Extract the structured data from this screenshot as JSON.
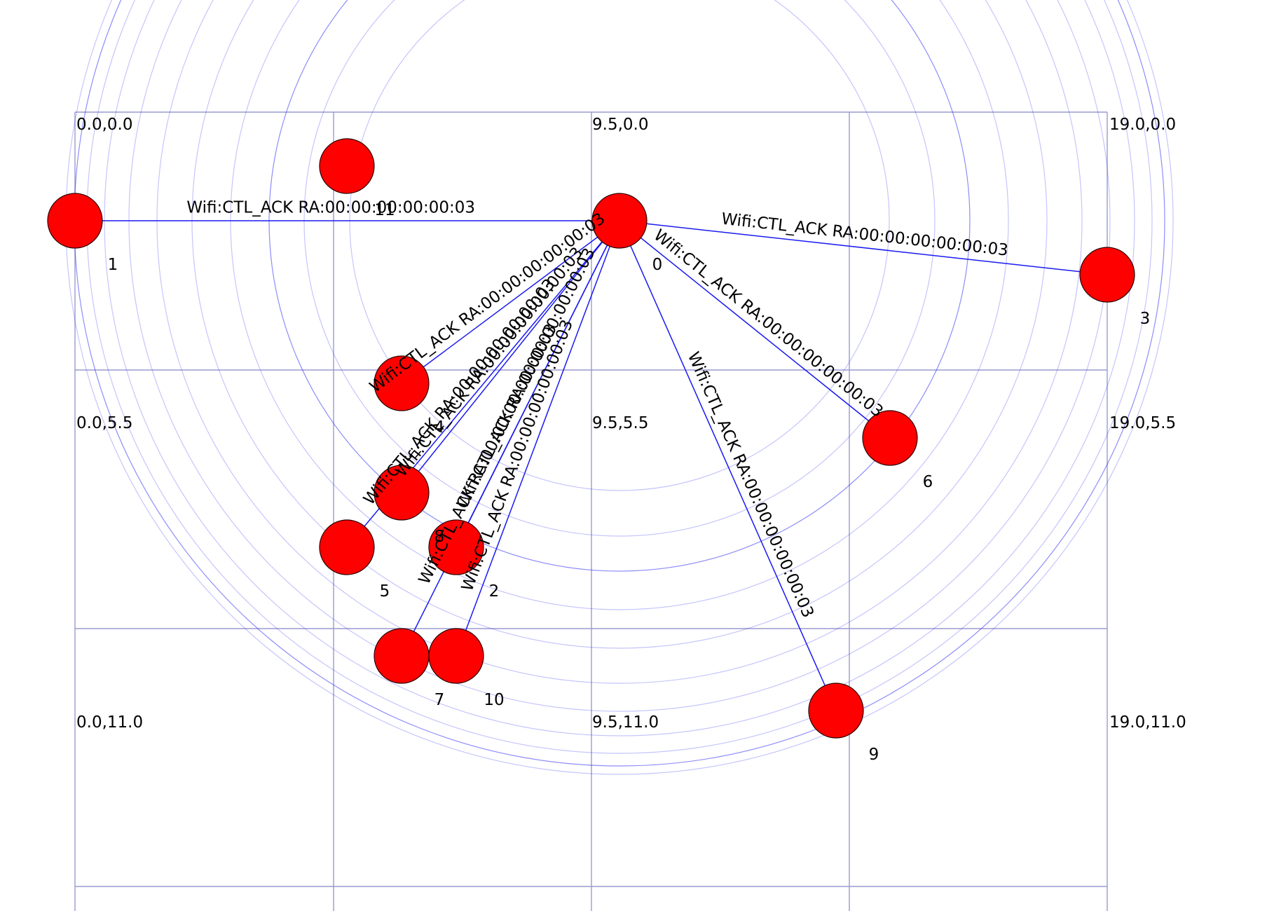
{
  "grid": {
    "coord_labels": [
      "0.0,0.0",
      "9.5,0.0",
      "19.0,0.0",
      "0.0,5.5",
      "9.5,5.5",
      "19.0,5.5",
      "0.0,11.0",
      "9.5,11.0",
      "19.0,11.0"
    ]
  },
  "nodes": [
    {
      "id": "0",
      "label": "0"
    },
    {
      "id": "1",
      "label": "1"
    },
    {
      "id": "2",
      "label": "2"
    },
    {
      "id": "3",
      "label": "3"
    },
    {
      "id": "4",
      "label": "4"
    },
    {
      "id": "5",
      "label": "5"
    },
    {
      "id": "6",
      "label": "6"
    },
    {
      "id": "7",
      "label": "7"
    },
    {
      "id": "8",
      "label": "8"
    },
    {
      "id": "9",
      "label": "9"
    },
    {
      "id": "10",
      "label": "10"
    },
    {
      "id": "11",
      "label": "11"
    }
  ],
  "transmissions": [
    {
      "from": "0",
      "to": "1",
      "label": "Wifi:CTL_ACK RA:00:00:00:00:00:03"
    },
    {
      "from": "0",
      "to": "3",
      "label": "Wifi:CTL_ACK RA:00:00:00:00:00:03"
    },
    {
      "from": "0",
      "to": "6",
      "label": "Wifi:CTL_ACK RA:00:00:00:00:00:03"
    },
    {
      "from": "0",
      "to": "9",
      "label": "Wifi:CTL_ACK RA:00:00:00:00:00:03"
    },
    {
      "from": "0",
      "to": "4",
      "label": "Wifi:CTL_ACK RA:00:00:00:00:00:03"
    },
    {
      "from": "0",
      "to": "8",
      "label": "Wifi:CTL_ACK RA:00:00:00:00:00:03"
    },
    {
      "from": "0",
      "to": "5",
      "label": "Wifi:CTL_ACK RA:00:00:00:00:00:03"
    },
    {
      "from": "0",
      "to": "2",
      "label": "Wifi:CTL_ACK RA:00:00:00:00:00:03"
    },
    {
      "from": "0",
      "to": "7",
      "label": "Wifi:CTL_ACK RA:00:00:00:00:00:03"
    },
    {
      "from": "0",
      "to": "10",
      "label": "Wifi:CTL_ACK RA:00:00:00:00:00:03"
    }
  ],
  "colors": {
    "node_fill": "#ff0000",
    "link": "#1a1af0",
    "ring": "#2f2ff5",
    "grid": "#9a9ad0"
  }
}
